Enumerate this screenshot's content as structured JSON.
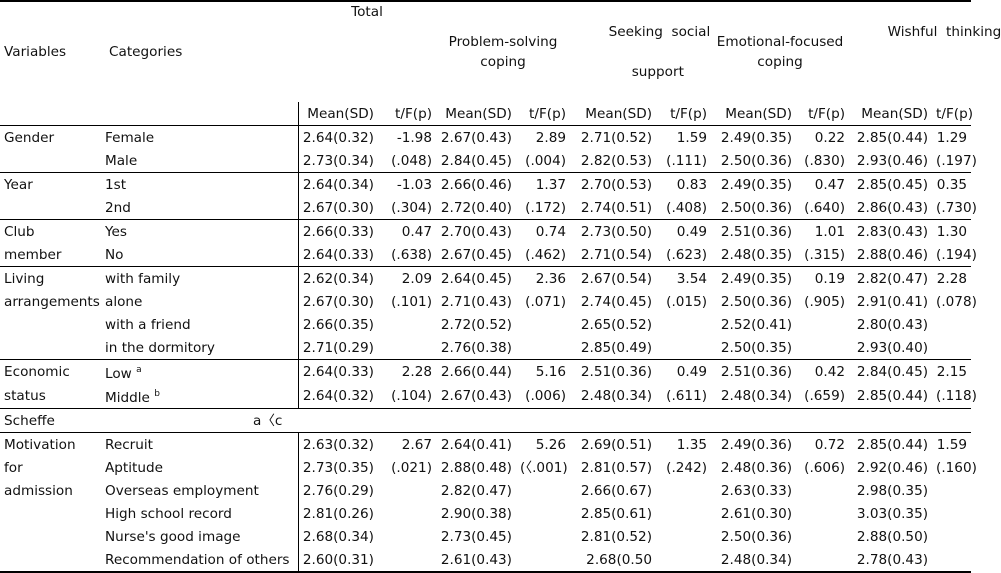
{
  "headers": {
    "variables": "Variables",
    "categories": "Categories",
    "groups": [
      {
        "line1": "Total",
        "line2": ""
      },
      {
        "line1": "Problem-solving",
        "line2": "coping"
      },
      {
        "line1": "Seeking  social",
        "line2": "support"
      },
      {
        "line1": "Emotional-focused",
        "line2": "coping"
      },
      {
        "line1": "Wishful  thinking",
        "line2": ""
      }
    ],
    "mean_label": "Mean(SD)",
    "stat_label": "t/F(p)"
  },
  "sections": [
    {
      "variable": [
        "Gender"
      ],
      "rows": [
        {
          "category": "Female",
          "cells": [
            "2.64(0.32)",
            "-1.98",
            "2.67(0.43)",
            "2.89",
            "2.71(0.52)",
            "1.59",
            "2.49(0.35)",
            "0.22",
            "2.85(0.44)",
            "1.29"
          ]
        },
        {
          "category": "Male",
          "cells": [
            "2.73(0.34)",
            "(.048)",
            "2.84(0.45)",
            "(.004)",
            "2.82(0.53)",
            "(.111)",
            "2.50(0.36)",
            "(.830)",
            "2.93(0.46)",
            "(.197)"
          ]
        }
      ]
    },
    {
      "variable": [
        "Year"
      ],
      "rows": [
        {
          "category": "1st",
          "cells": [
            "2.64(0.34)",
            "-1.03",
            "2.66(0.46)",
            "1.37",
            "2.70(0.53)",
            "0.83",
            "2.49(0.35)",
            "0.47",
            "2.85(0.45)",
            "0.35"
          ]
        },
        {
          "category": "2nd",
          "cells": [
            "2.67(0.30)",
            "(.304)",
            "2.72(0.40)",
            "(.172)",
            "2.74(0.51)",
            "(.408)",
            "2.50(0.36)",
            "(.640)",
            "2.86(0.43)",
            "(.730)"
          ]
        }
      ]
    },
    {
      "variable": [
        "Club",
        "member"
      ],
      "rows": [
        {
          "category": "Yes",
          "cells": [
            "2.66(0.33)",
            "0.47",
            "2.70(0.43)",
            "0.74",
            "2.73(0.50)",
            "0.49",
            "2.51(0.36)",
            "1.01",
            "2.83(0.43)",
            "1.30"
          ]
        },
        {
          "category": "No",
          "cells": [
            "2.64(0.33)",
            "(.638)",
            "2.67(0.45)",
            "(.462)",
            "2.71(0.54)",
            "(.623)",
            "2.48(0.35)",
            "(.315)",
            "2.88(0.46)",
            "(.194)"
          ]
        }
      ]
    },
    {
      "variable": [
        "Living",
        "arrangements"
      ],
      "rows": [
        {
          "category": "with family",
          "cells": [
            "2.62(0.34)",
            "2.09",
            "2.64(0.45)",
            "2.36",
            "2.67(0.54)",
            "3.54",
            "2.49(0.35)",
            "0.19",
            "2.82(0.47)",
            "2.28"
          ]
        },
        {
          "category": "alone",
          "cells": [
            "2.67(0.30)",
            "(.101)",
            "2.71(0.43)",
            "(.071)",
            "2.74(0.45)",
            "(.015)",
            "2.50(0.36)",
            "(.905)",
            "2.91(0.41)",
            "(.078)"
          ]
        },
        {
          "category": "with a friend",
          "cells": [
            "2.66(0.35)",
            "",
            "2.72(0.52)",
            "",
            "2.65(0.52)",
            "",
            "2.52(0.41)",
            "",
            "2.80(0.43)",
            ""
          ]
        },
        {
          "category": "in the dormitory",
          "cells": [
            "2.71(0.29)",
            "",
            "2.76(0.38)",
            "",
            "2.85(0.49)",
            "",
            "2.50(0.35)",
            "",
            "2.93(0.40)",
            ""
          ]
        }
      ]
    },
    {
      "variable": [
        "Economic",
        "status"
      ],
      "rows": [
        {
          "category": "Low",
          "sup": "a",
          "cells": [
            "2.64(0.33)",
            "2.28",
            "2.66(0.44)",
            "5.16",
            "2.51(0.36)",
            "0.49",
            "2.51(0.36)",
            "0.42",
            "2.84(0.45)",
            "2.15"
          ]
        },
        {
          "category": "Middle",
          "sup": "b",
          "cells": [
            "2.64(0.32)",
            "(.104)",
            "2.67(0.43)",
            "(.006)",
            "2.48(0.34)",
            "(.611)",
            "2.48(0.34)",
            "(.659)",
            "2.85(0.44)",
            "(.118)"
          ]
        }
      ]
    },
    {
      "variable": [
        "Scheffe"
      ],
      "scheffe": "a〈c"
    },
    {
      "variable": [
        "Motivation",
        "for",
        "admission"
      ],
      "rows": [
        {
          "category": "Recruit",
          "cells": [
            "2.63(0.32)",
            "2.67",
            "2.64(0.41)",
            "5.26",
            "2.69(0.51)",
            "1.35",
            "2.49(0.36)",
            "0.72",
            "2.85(0.44)",
            "1.59"
          ]
        },
        {
          "category": "Aptitude",
          "cells": [
            "2.73(0.35)",
            "(.021)",
            "2.88(0.48)",
            "(〈.001)",
            "2.81(0.57)",
            "(.242)",
            "2.48(0.36)",
            "(.606)",
            "2.92(0.46)",
            "(.160)"
          ]
        },
        {
          "category": "Overseas employment",
          "cells": [
            "2.76(0.29)",
            "",
            "2.82(0.47)",
            "",
            "2.66(0.67)",
            "",
            "2.63(0.33)",
            "",
            "2.98(0.35)",
            ""
          ]
        },
        {
          "category": "High school record",
          "cells": [
            "2.81(0.26)",
            "",
            "2.90(0.38)",
            "",
            "2.85(0.61)",
            "",
            "2.61(0.30)",
            "",
            "3.03(0.35)",
            ""
          ]
        },
        {
          "category": "Nurse's good image",
          "cells": [
            "2.68(0.34)",
            "",
            "2.73(0.45)",
            "",
            "2.81(0.52)",
            "",
            "2.50(0.36)",
            "",
            "2.88(0.50)",
            ""
          ]
        },
        {
          "category": "Recommendation of others",
          "cells": [
            "2.60(0.31)",
            "",
            "2.61(0.43)",
            "",
            "2.68(0.50",
            "",
            "2.48(0.34)",
            "",
            "2.78(0.43)",
            ""
          ]
        }
      ]
    }
  ]
}
